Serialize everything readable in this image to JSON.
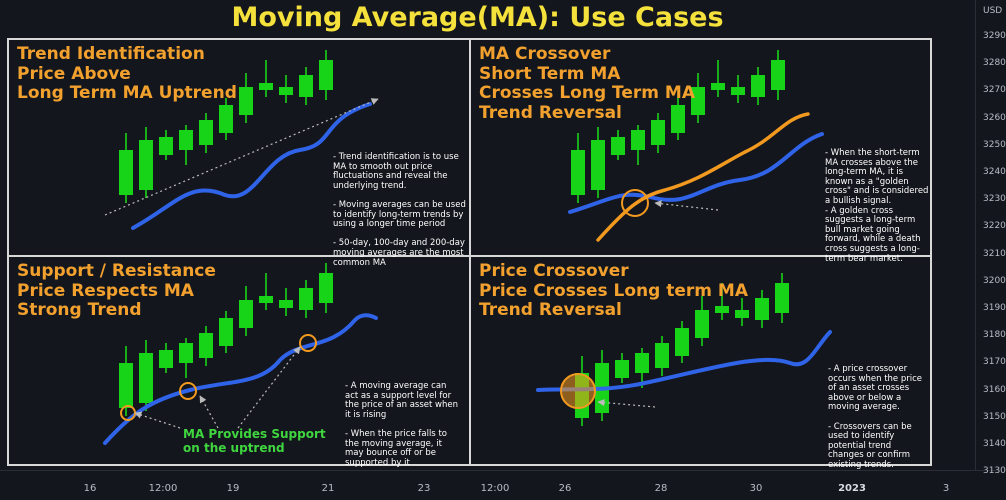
{
  "title": "Moving Average(MA): Use Cases",
  "panels": {
    "p1": {
      "title": "Trend Identification\nPrice Above\nLong Term MA Uptrend",
      "notes": "- Trend identification is to use\nMA to smooth out price\nfluctuations and reveal the\nunderlying trend.\n\n- Moving averages can be used\nto identify long-term trends by\nusing a longer time period\n\n- 50-day, 100-day and 200-day\nmoving averages are the most\ncommon MA"
    },
    "p2": {
      "title": "MA Crossover\nShort Term MA\nCrosses Long Term MA\nTrend Reversal",
      "notes": "- When the short-term\nMA crosses above the\nlong-term MA, it is\nknown as a \"golden\ncross\" and is considered\na bullish signal.\n- A golden cross\nsuggests a long-term\nbull market going\nforward, while a death\ncross suggests a long-\nterm bear market."
    },
    "p3": {
      "title": "Support / Resistance\nPrice Respects MA\nStrong Trend",
      "notes": "- A moving average can\nact as a support level for\nthe price of an asset when\nit is rising\n\n- When the price falls to\nthe moving average, it\nmay bounce off or be\nsupported by it",
      "support_label": "MA Provides Support\non the uptrend"
    },
    "p4": {
      "title": "Price Crossover\nPrice Crosses Long term MA\nTrend Reversal",
      "notes": "- A price crossover\noccurs when the price\nof an asset crosses\nabove or below a\nmoving average.\n\n- Crossovers can be\nused to identify\npotential trend\nchanges or confirm\nexisting trends."
    }
  },
  "chart_data": {
    "type": "candlestick",
    "x_ticks": [
      "16",
      "12:00",
      "19",
      "21",
      "23",
      "12:00",
      "26",
      "28",
      "30",
      "2023",
      "3"
    ],
    "x_ticks_bold": [
      "2023"
    ],
    "y_unit": "USD",
    "y_ticks": [
      "3290",
      "3280",
      "3270",
      "3260",
      "3250",
      "3240",
      "3230",
      "3220",
      "3210",
      "3200",
      "3190",
      "3180",
      "3170",
      "3160",
      "3150",
      "3140",
      "3130"
    ],
    "colors": {
      "up": "#18d418",
      "down": "#e8141a",
      "long_ma": "#2f63e8",
      "short_ma": "#f29a1f",
      "highlight": "#f29a1f"
    }
  }
}
